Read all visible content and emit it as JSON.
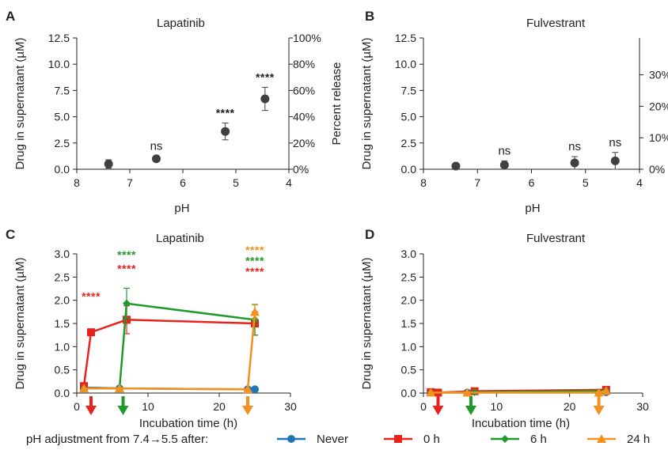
{
  "colors": {
    "Never": "#1f77b4",
    "0 h": "#e8231d",
    "6 h": "#1f9a2a",
    "24 h": "#f4901e",
    "markers_ab": "#404040",
    "axis": "#222222"
  },
  "legend": {
    "prefix": "pH adjustment from 7.4→5.5 after:",
    "items": [
      "Never",
      "0 h",
      "6 h",
      "24 h"
    ]
  },
  "chart_data": [
    {
      "panel": "A",
      "type": "scatter",
      "title": "Lapatinib",
      "xlabel": "pH",
      "ylabel": "Drug in supernatant (µM)",
      "ylabel_right": "Percent release",
      "xlim": [
        8,
        4
      ],
      "xticks": [
        "8",
        "7",
        "6",
        "5",
        "4"
      ],
      "ylim": [
        0,
        12.5
      ],
      "yticks": [
        "0.0",
        "2.5",
        "5.0",
        "7.5",
        "10.0",
        "12.5"
      ],
      "y2ticks": [
        "0%",
        "20%",
        "40%",
        "60%",
        "80%",
        "100%"
      ],
      "points": [
        {
          "x": 7.4,
          "y": 0.5,
          "err": 0.4,
          "label": ""
        },
        {
          "x": 6.5,
          "y": 1.0,
          "err": 0.25,
          "label": "ns"
        },
        {
          "x": 5.2,
          "y": 3.6,
          "err": 0.8,
          "label": "****"
        },
        {
          "x": 4.45,
          "y": 6.7,
          "err": 1.1,
          "label": "****"
        }
      ]
    },
    {
      "panel": "B",
      "type": "scatter",
      "title": "Fulvestrant",
      "xlabel": "pH",
      "ylabel": "Drug in supernatant (µM)",
      "xlim": [
        8,
        4
      ],
      "xticks": [
        "8",
        "7",
        "6",
        "5",
        "4"
      ],
      "ylim": [
        0,
        12.5
      ],
      "yticks": [
        "0.0",
        "2.5",
        "5.0",
        "7.5",
        "10.0",
        "12.5"
      ],
      "y2ticks": [
        "0%",
        "10%",
        "20%",
        "30%"
      ],
      "points": [
        {
          "x": 7.4,
          "y": 0.3,
          "err": 0.25,
          "label": ""
        },
        {
          "x": 6.5,
          "y": 0.4,
          "err": 0.4,
          "label": "ns"
        },
        {
          "x": 5.2,
          "y": 0.6,
          "err": 0.6,
          "label": "ns"
        },
        {
          "x": 4.45,
          "y": 0.8,
          "err": 0.8,
          "label": "ns"
        }
      ]
    },
    {
      "panel": "C",
      "type": "line",
      "title": "Lapatinib",
      "xlabel": "Incubation time (h)",
      "ylabel": "Drug in supernatant (µM)",
      "xlim": [
        0,
        30
      ],
      "xticks": [
        "0",
        "10",
        "20",
        "30"
      ],
      "ylim": [
        0,
        3.0
      ],
      "yticks": [
        "0.0",
        "0.5",
        "1.0",
        "1.5",
        "2.0",
        "2.5",
        "3.0"
      ],
      "series": [
        {
          "name": "Never",
          "x": [
            1,
            6,
            24,
            25
          ],
          "y": [
            0.12,
            0.1,
            0.08,
            0.08
          ]
        },
        {
          "name": "0 h",
          "x": [
            1,
            2,
            7,
            25
          ],
          "y": [
            0.15,
            1.31,
            1.58,
            1.5
          ],
          "err": [
            0,
            0,
            0.3,
            0.25
          ]
        },
        {
          "name": "6 h",
          "x": [
            1,
            6,
            7,
            25
          ],
          "y": [
            0.1,
            0.1,
            1.93,
            1.58
          ],
          "err": [
            0,
            0,
            0.33,
            0.33
          ]
        },
        {
          "name": "24 h",
          "x": [
            1,
            6,
            24,
            25
          ],
          "y": [
            0.1,
            0.1,
            0.08,
            1.75
          ],
          "err": [
            0,
            0,
            0,
            0.15
          ]
        }
      ],
      "annotations": [
        {
          "text": "****",
          "color": "0 h",
          "x": 2,
          "y": 2.0
        },
        {
          "text": "****",
          "color": "6 h",
          "x": 7,
          "y": 2.9
        },
        {
          "text": "****",
          "color": "0 h",
          "x": 7,
          "y": 2.6
        },
        {
          "text": "****",
          "color": "24 h",
          "x": 25,
          "y": 3.0
        },
        {
          "text": "****",
          "color": "6 h",
          "x": 25,
          "y": 2.77
        },
        {
          "text": "****",
          "color": "0 h",
          "x": 25,
          "y": 2.54
        }
      ],
      "arrows": [
        {
          "x": 2,
          "color": "0 h"
        },
        {
          "x": 6.5,
          "color": "6 h"
        },
        {
          "x": 24,
          "color": "24 h"
        }
      ]
    },
    {
      "panel": "D",
      "type": "line",
      "title": "Fulvestrant",
      "xlabel": "Incubation time (h)",
      "ylabel": "Drug in supernatant (µM)",
      "xlim": [
        0,
        30
      ],
      "xticks": [
        "0",
        "10",
        "20",
        "30"
      ],
      "ylim": [
        0,
        3.0
      ],
      "yticks": [
        "0.0",
        "0.5",
        "1.0",
        "1.5",
        "2.0",
        "2.5",
        "3.0"
      ],
      "series": [
        {
          "name": "Never",
          "x": [
            1,
            6,
            24,
            25
          ],
          "y": [
            0.01,
            0.01,
            0.01,
            0.02
          ]
        },
        {
          "name": "0 h",
          "x": [
            1,
            2,
            7,
            25
          ],
          "y": [
            0.02,
            0.01,
            0.04,
            0.07
          ]
        },
        {
          "name": "6 h",
          "x": [
            1,
            6,
            7,
            25
          ],
          "y": [
            0.01,
            0.01,
            0.02,
            0.05
          ]
        },
        {
          "name": "24 h",
          "x": [
            1,
            6,
            24,
            25
          ],
          "y": [
            0.01,
            0.01,
            0.01,
            0.05
          ]
        }
      ],
      "arrows": [
        {
          "x": 2,
          "color": "0 h"
        },
        {
          "x": 6.5,
          "color": "6 h"
        },
        {
          "x": 24,
          "color": "24 h"
        }
      ]
    }
  ]
}
